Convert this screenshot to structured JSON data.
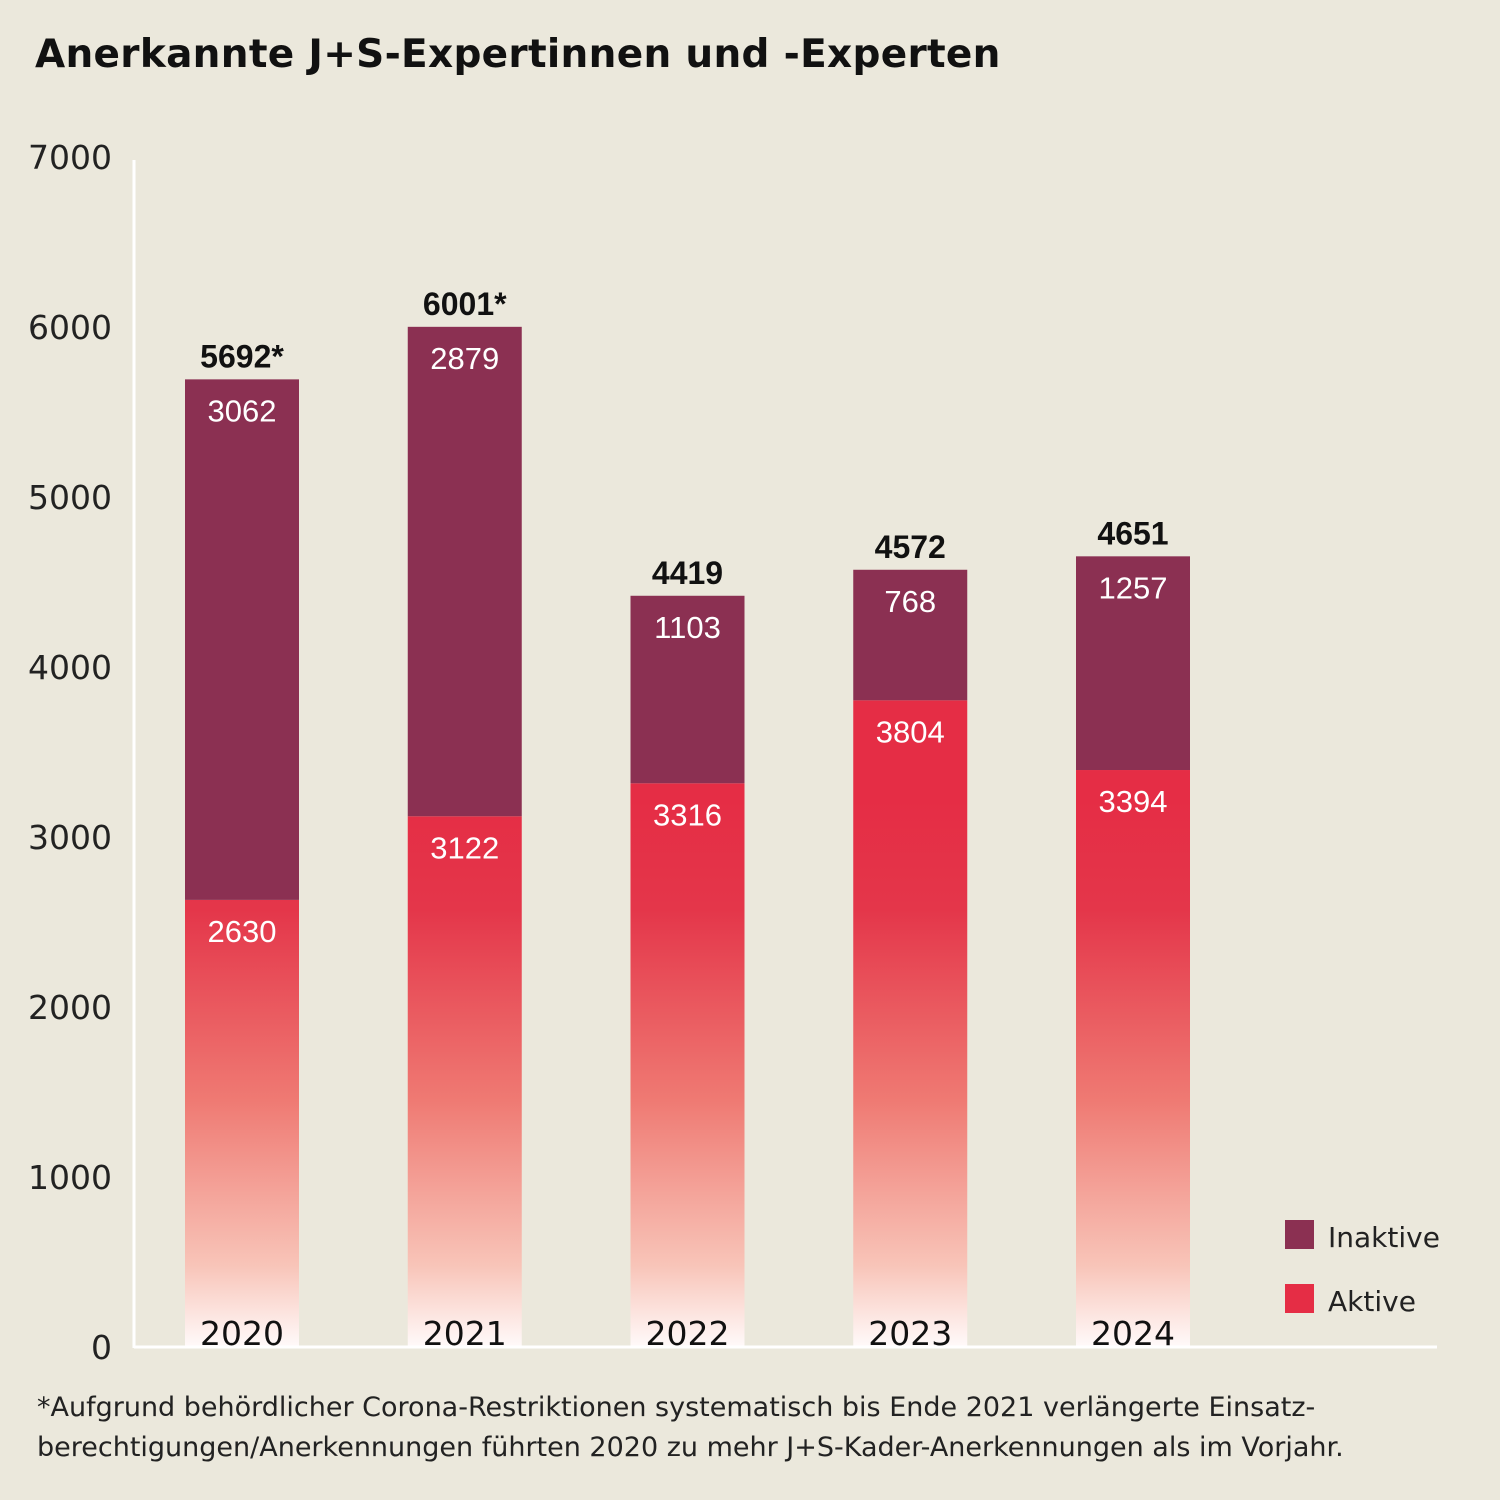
{
  "title": "Anerkannte J+S-Expertinnen und -Experten",
  "footnote": "*Aufgrund behördlicher Corona-Restriktionen systematisch bis Ende 2021 verlängerte Einsatz-\nberechtigungen/Anerkennungen führten 2020 zu mehr J+S-Kader-Anerkennungen als im Vorjahr.",
  "chart_data": {
    "type": "bar",
    "stacked": true,
    "title": "Anerkannte J+S-Expertinnen und -Experten",
    "categories": [
      "2020",
      "2021",
      "2022",
      "2023",
      "2024"
    ],
    "series": [
      {
        "name": "Aktive",
        "values": [
          2630,
          3122,
          3316,
          3804,
          3394
        ],
        "color": "#e52d45"
      },
      {
        "name": "Inaktive",
        "values": [
          3062,
          2879,
          1103,
          768,
          1257
        ],
        "color": "#8b3052"
      }
    ],
    "totals": [
      "5692*",
      "6001*",
      "4419",
      "4572",
      "4651"
    ],
    "ylim": [
      0,
      7000
    ],
    "yticks": [
      "0",
      "1000",
      "2000",
      "3000",
      "4000",
      "5000",
      "6000",
      "7000"
    ],
    "grid": false,
    "legend": "bottom-right",
    "legend_entries": [
      "Inaktive",
      "Aktive"
    ]
  }
}
